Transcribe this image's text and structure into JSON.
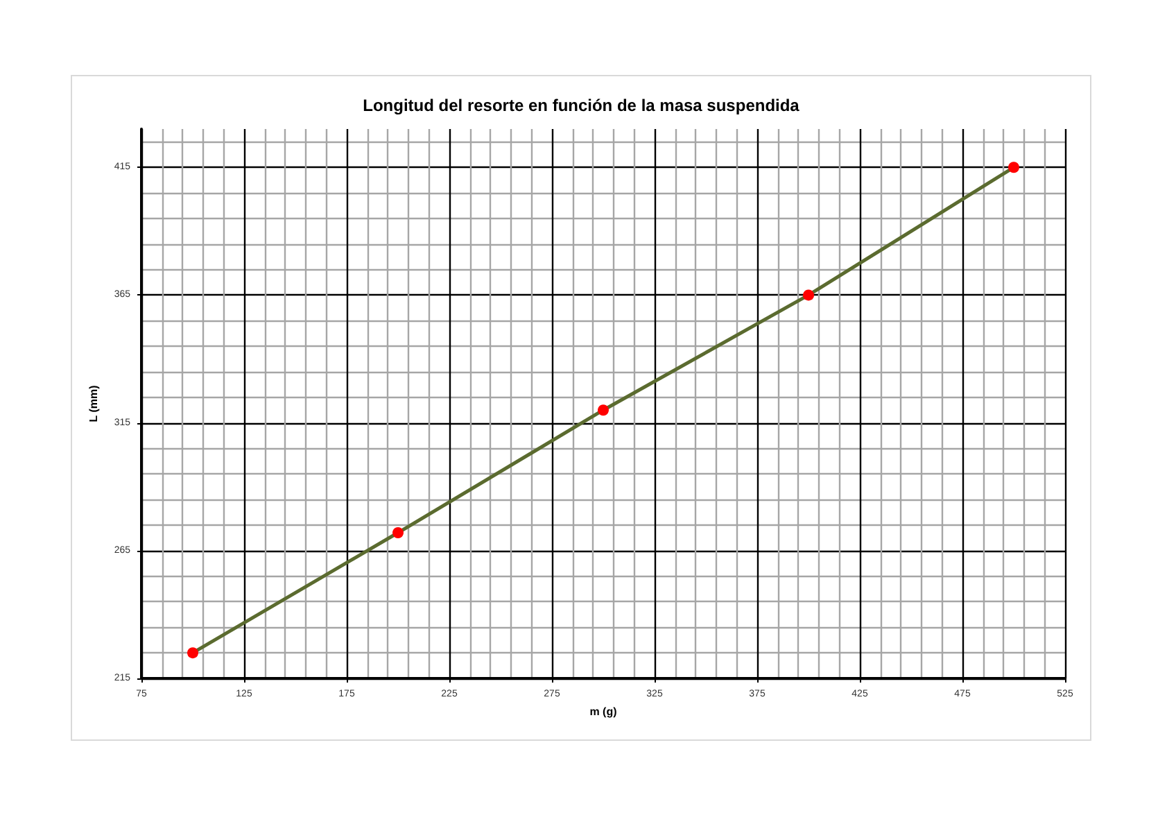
{
  "chart_data": {
    "type": "line",
    "title": "Longitud del resorte en función de la masa suspendida",
    "xlabel": "m (g)",
    "ylabel": "L (mm)",
    "x": [
      100,
      200,
      300,
      400,
      500
    ],
    "series": [
      {
        "color": "#5b6b2f",
        "colors": [
          "#ff0000",
          "#ff0000",
          "#ff0000",
          "#ff0000",
          "#ff0000"
        ],
        "values": [
          225,
          272,
          320,
          365,
          415
        ]
      }
    ],
    "xlim": [
      75,
      525
    ],
    "xticks": [
      75,
      125,
      175,
      225,
      275,
      325,
      375,
      425,
      475,
      525
    ],
    "ylim": [
      215,
      430
    ],
    "yticks": [
      215,
      265,
      315,
      365,
      415
    ],
    "grid": true,
    "marker": "circle",
    "line_style": "solid"
  }
}
